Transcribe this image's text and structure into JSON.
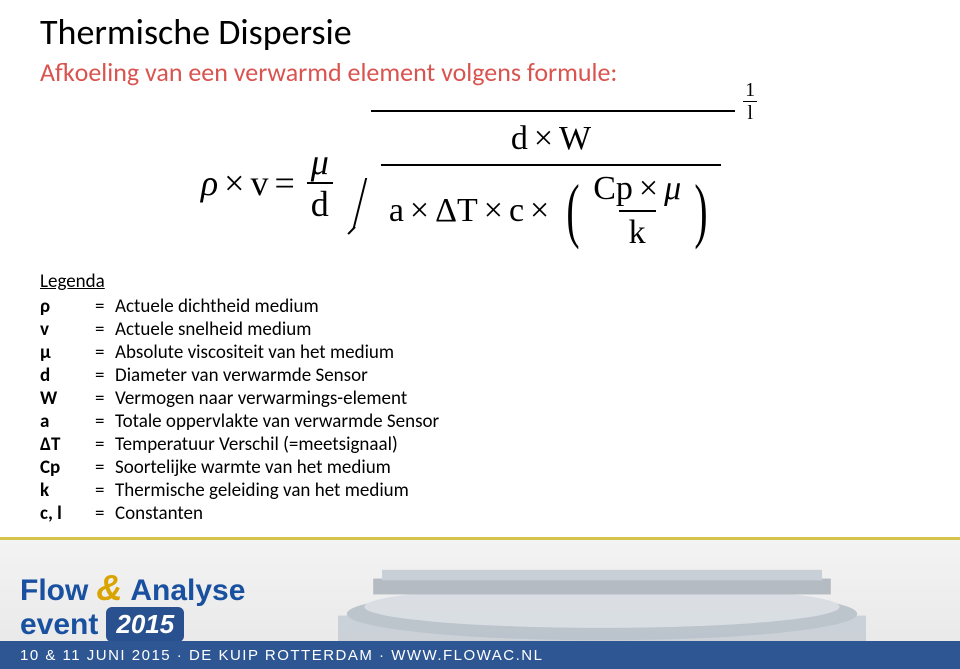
{
  "title": "Thermische Dispersie",
  "subtitle": "Afkoeling van een verwarmd element volgens formule:",
  "subtitle_color": "#d9534f",
  "formula": {
    "lhs_rho": "ρ",
    "lhs_v": "v",
    "eq": "=",
    "mu": "μ",
    "over_d": "d",
    "num_d": "d",
    "num_W": "W",
    "den_a": "a",
    "den_dT": "ΔT",
    "den_c": "c",
    "Cp": "Cp",
    "inner_mu": "μ",
    "inner_k": "k",
    "exp_num": "1",
    "exp_den": "l",
    "times": "×"
  },
  "legend_header": "Legenda",
  "legend": [
    {
      "sym": "ρ",
      "desc": "Actuele dichtheid medium"
    },
    {
      "sym": "v",
      "desc": "Actuele snelheid medium"
    },
    {
      "sym": "μ",
      "desc": "Absolute viscositeit van het medium"
    },
    {
      "sym": "d",
      "desc": "Diameter van verwarmde Sensor"
    },
    {
      "sym": "W",
      "desc": "Vermogen naar verwarmings-element"
    },
    {
      "sym": "a",
      "desc": "Totale oppervlakte van verwarmde Sensor"
    },
    {
      "sym": "ΔT",
      "desc": "Temperatuur Verschil (=meetsignaal)"
    },
    {
      "sym": "Cp",
      "desc": "Soortelijke warmte van het medium"
    },
    {
      "sym": "k",
      "desc": "Thermische geleiding van het medium"
    },
    {
      "sym": "c, l",
      "desc": "Constanten"
    }
  ],
  "footer": {
    "logo_flow": "Flow",
    "logo_amp": "&",
    "logo_analyse": "Analyse",
    "logo_event": "event",
    "logo_year": "2015",
    "date_line": "10 & 11 JUNI 2015 · DE KUIP ROTTERDAM · WWW.FLOWAC.NL",
    "band_color": "#e7e7e7",
    "accent_color": "#d4c54a",
    "bar_color": "#2d5693",
    "logo_blue": "#1951a0"
  }
}
